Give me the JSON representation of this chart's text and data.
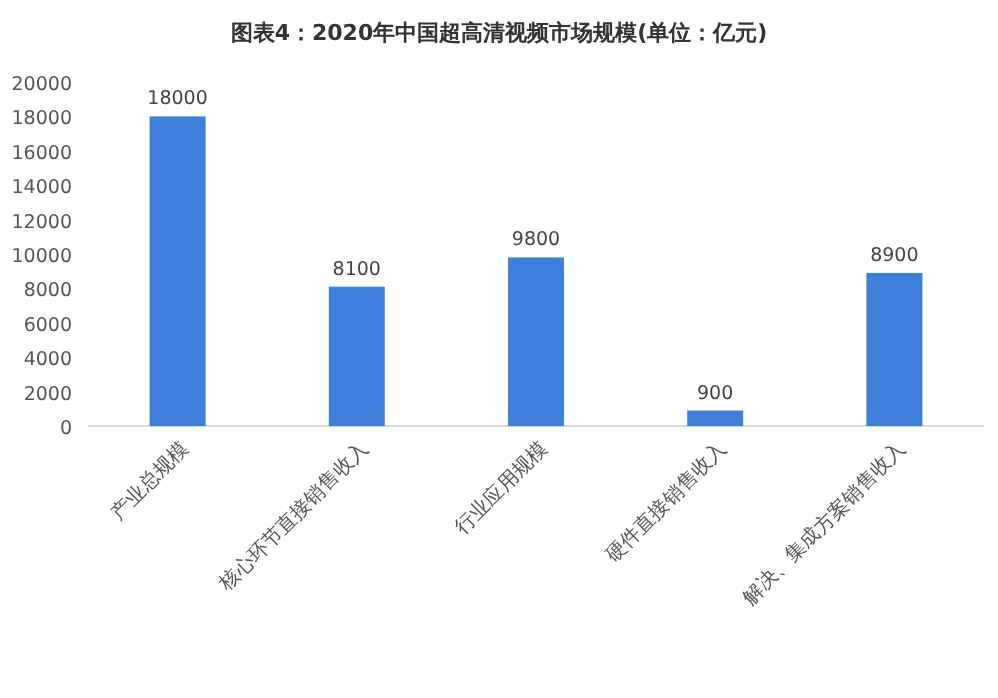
{
  "chart_data": {
    "type": "bar",
    "title": "图表4：2020年中国超高清视频市场规模(单位：亿元)",
    "categories": [
      "产业总规模",
      "核心环节直接销售收入",
      "行业应用规模",
      "硬件直接销售收入",
      "解决、集成方案销售收入"
    ],
    "values": [
      18000,
      8100,
      9800,
      900,
      8900
    ],
    "color": "#3f7fdc",
    "ylim": [
      0,
      20000
    ],
    "yticks": [
      0,
      2000,
      4000,
      6000,
      8000,
      10000,
      12000,
      14000,
      16000,
      18000,
      20000
    ],
    "data_labels": true,
    "grid": false
  }
}
